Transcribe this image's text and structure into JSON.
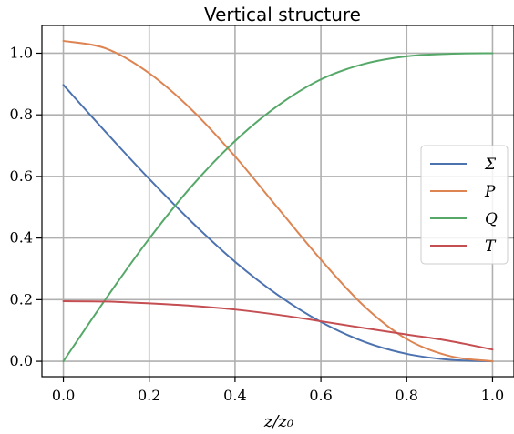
{
  "chart_data": {
    "type": "line",
    "title": "Vertical structure",
    "xlabel": "z/z₀",
    "ylabel": "",
    "xlim": [
      -0.05,
      1.05
    ],
    "ylim": [
      -0.05,
      1.09
    ],
    "x_ticks": [
      "0.0",
      "0.2",
      "0.4",
      "0.6",
      "0.8",
      "1.0"
    ],
    "y_ticks": [
      "0.0",
      "0.2",
      "0.4",
      "0.6",
      "0.8",
      "1.0"
    ],
    "grid": true,
    "legend_position": "right",
    "x": [
      0.0,
      0.1,
      0.2,
      0.3,
      0.4,
      0.5,
      0.6,
      0.7,
      0.8,
      0.9,
      1.0
    ],
    "series": [
      {
        "name": "Σ",
        "color": "#4c72b0",
        "values": [
          0.897,
          0.742,
          0.592,
          0.451,
          0.323,
          0.215,
          0.128,
          0.064,
          0.024,
          0.005,
          0.0
        ]
      },
      {
        "name": "P",
        "color": "#dd8452",
        "values": [
          1.04,
          1.015,
          0.935,
          0.815,
          0.665,
          0.497,
          0.33,
          0.18,
          0.072,
          0.017,
          0.0
        ]
      },
      {
        "name": "Q",
        "color": "#55a868",
        "values": [
          0.0,
          0.205,
          0.398,
          0.57,
          0.715,
          0.83,
          0.915,
          0.965,
          0.99,
          0.998,
          1.0
        ]
      },
      {
        "name": "T",
        "color": "#c44e52",
        "values": [
          0.195,
          0.194,
          0.188,
          0.18,
          0.168,
          0.151,
          0.13,
          0.108,
          0.087,
          0.066,
          0.038
        ]
      }
    ]
  }
}
